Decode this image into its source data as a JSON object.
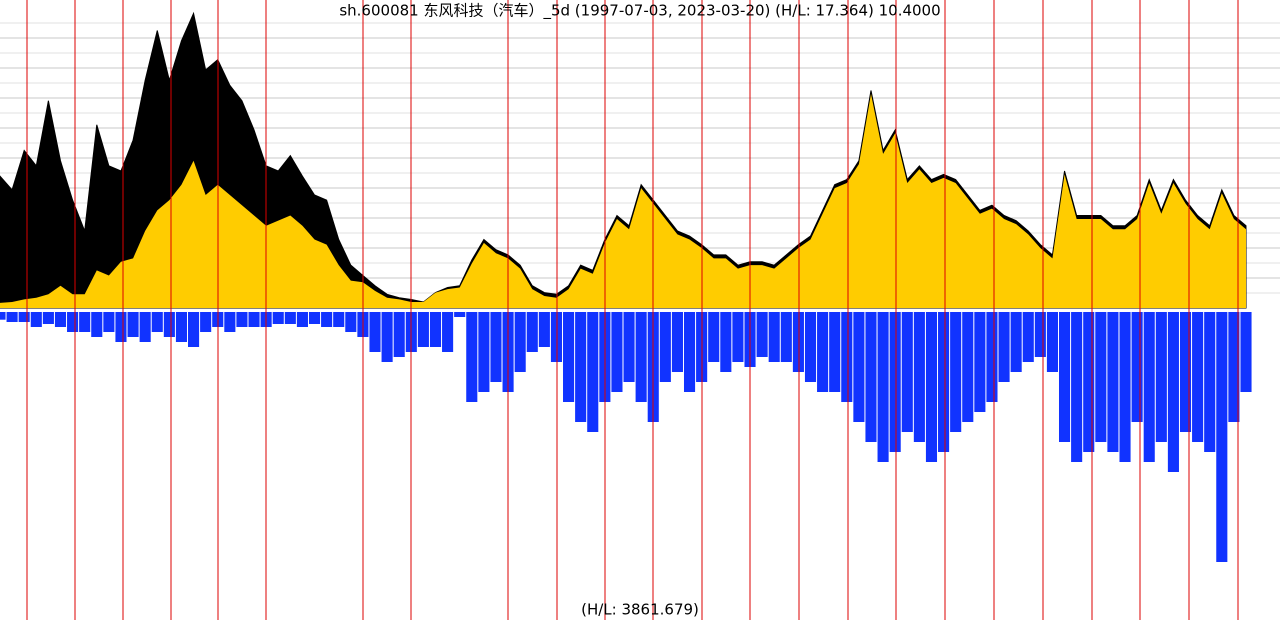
{
  "chart_data": {
    "type": "area",
    "title": "sh.600081 东风科技（汽车）_5d (1997-07-03, 2023-03-20) (H/L: 17.364) 10.4000",
    "volume_label": "(H/L: 3861.679)",
    "ylim": [
      0,
      17.4
    ],
    "y2lim": [
      0,
      3900
    ],
    "series": [
      {
        "name": "price",
        "color": "#000000",
        "values": [
          7.7,
          6.9,
          9.2,
          8.3,
          12.1,
          8.6,
          6.3,
          4.5,
          10.7,
          8.3,
          8.0,
          9.8,
          13.3,
          16.2,
          13.3,
          15.6,
          17.2,
          13.9,
          14.5,
          13.0,
          12.1,
          10.4,
          8.3,
          8.0,
          8.9,
          7.7,
          6.6,
          6.3,
          4.0,
          2.5,
          1.9,
          1.3,
          0.8,
          0.6,
          0.5,
          0.35,
          0.9,
          1.2,
          1.3,
          2.8,
          4.0,
          3.4,
          3.1,
          2.5,
          1.3,
          0.9,
          0.8,
          1.3,
          2.5,
          2.2,
          4.0,
          5.4,
          4.8,
          7.2,
          6.3,
          5.4,
          4.5,
          4.2,
          3.7,
          3.1,
          3.1,
          2.5,
          2.7,
          2.7,
          2.5,
          3.1,
          3.7,
          4.2,
          5.7,
          7.2,
          7.5,
          8.6,
          12.7,
          9.2,
          10.4,
          7.5,
          8.3,
          7.5,
          7.8,
          7.5,
          6.6,
          5.7,
          6.0,
          5.4,
          5.1,
          4.5,
          3.7,
          3.1,
          8.0,
          5.4,
          5.4,
          5.4,
          4.8,
          4.8,
          5.4,
          7.5,
          5.7,
          7.5,
          6.3,
          5.4,
          4.8,
          6.9,
          5.4,
          4.8
        ]
      },
      {
        "name": "adjusted",
        "color": "#ffcc00",
        "values": [
          0.3,
          0.35,
          0.5,
          0.6,
          0.8,
          1.3,
          0.8,
          0.8,
          2.2,
          1.9,
          2.7,
          2.9,
          4.5,
          5.7,
          6.3,
          7.2,
          8.6,
          6.6,
          7.2,
          6.6,
          6.0,
          5.4,
          4.8,
          5.1,
          5.4,
          4.8,
          4.0,
          3.7,
          2.5,
          1.6,
          1.5,
          1.0,
          0.6,
          0.5,
          0.35,
          0.35,
          0.9,
          1.1,
          1.2,
          2.6,
          3.8,
          3.2,
          2.9,
          2.3,
          1.1,
          0.7,
          0.6,
          1.1,
          2.3,
          2.0,
          3.8,
          5.2,
          4.6,
          7.0,
          6.1,
          5.2,
          4.3,
          4.0,
          3.5,
          2.9,
          2.9,
          2.3,
          2.5,
          2.5,
          2.3,
          2.9,
          3.5,
          4.0,
          5.5,
          7.0,
          7.3,
          8.4,
          12.5,
          9.0,
          10.2,
          7.3,
          8.1,
          7.3,
          7.6,
          7.3,
          6.4,
          5.5,
          5.8,
          5.2,
          4.9,
          4.3,
          3.5,
          2.9,
          7.8,
          5.2,
          5.2,
          5.2,
          4.6,
          4.6,
          5.2,
          7.3,
          5.5,
          7.3,
          6.1,
          5.2,
          4.6,
          6.7,
          5.2,
          4.6
        ]
      },
      {
        "name": "volume",
        "color": "#1133ff",
        "axis": "y2",
        "values": [
          100,
          130,
          130,
          195,
          156,
          195,
          260,
          260,
          325,
          260,
          390,
          325,
          390,
          260,
          325,
          390,
          455,
          260,
          195,
          260,
          195,
          195,
          195,
          156,
          156,
          195,
          156,
          195,
          195,
          260,
          325,
          520,
          650,
          585,
          520,
          455,
          455,
          520,
          65,
          1170,
          1040,
          910,
          1040,
          780,
          520,
          455,
          650,
          1170,
          1430,
          1560,
          1170,
          1040,
          910,
          1170,
          1430,
          910,
          780,
          1040,
          910,
          650,
          780,
          650,
          715,
          585,
          650,
          650,
          780,
          910,
          1040,
          1040,
          1170,
          1430,
          1690,
          1950,
          1820,
          1560,
          1690,
          1950,
          1820,
          1560,
          1430,
          1300,
          1170,
          910,
          780,
          650,
          585,
          780,
          1690,
          1950,
          1820,
          1690,
          1820,
          1950,
          1430,
          1950,
          1690,
          2080,
          1560,
          1690,
          1820,
          3250,
          1430,
          1040
        ]
      }
    ]
  }
}
